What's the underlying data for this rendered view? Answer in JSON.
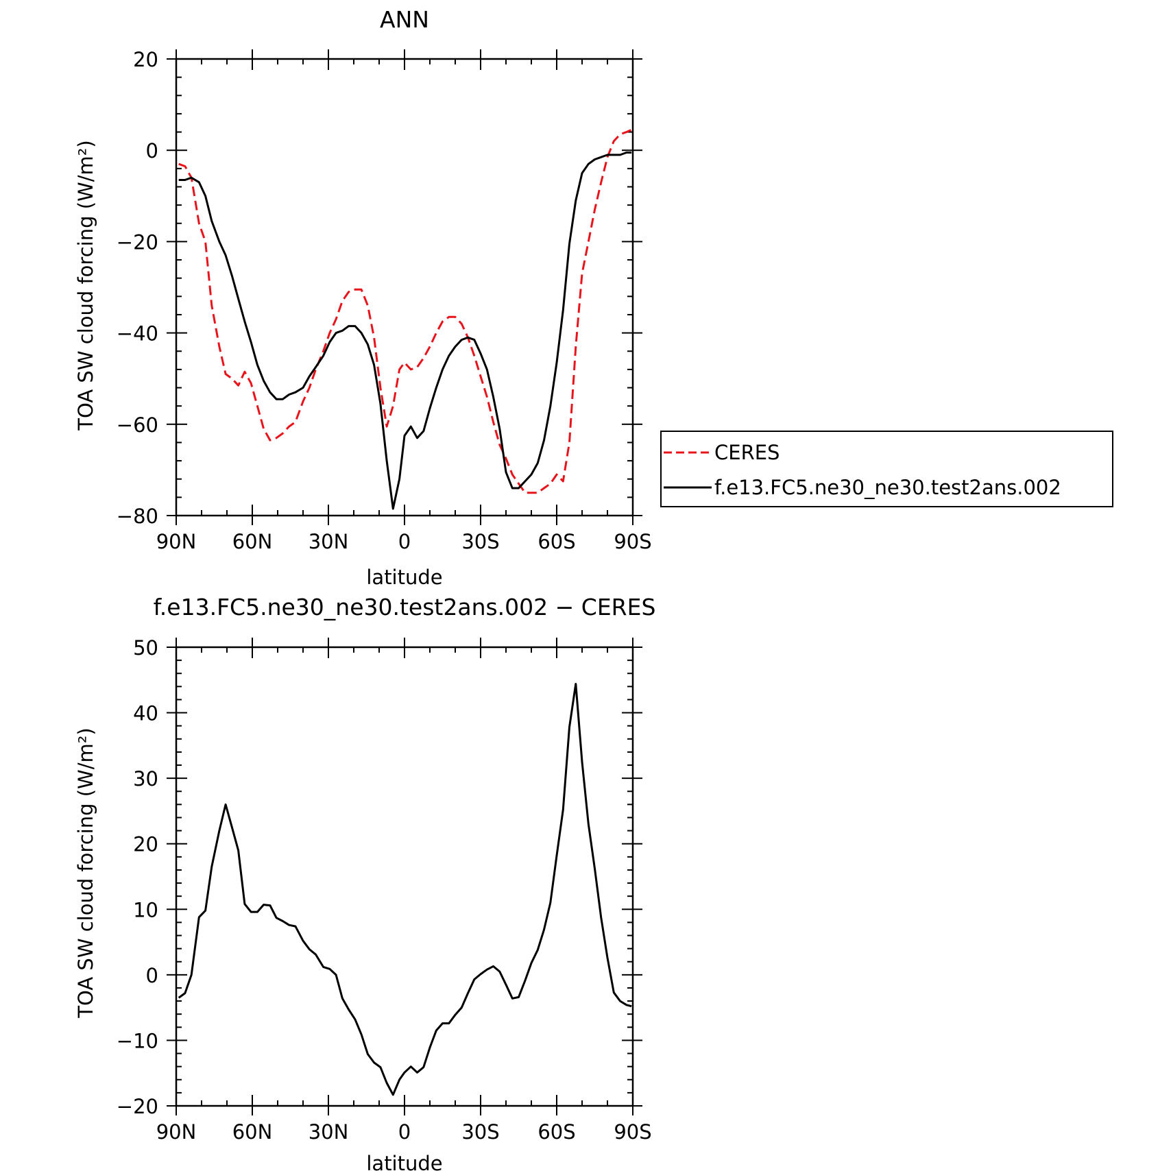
{
  "chart_data": [
    {
      "type": "line",
      "title": "ANN",
      "xlabel": "latitude",
      "ylabel": "TOA SW cloud forcing (W/m²)",
      "x_tick_labels": [
        "90N",
        "60N",
        "30N",
        "0",
        "30S",
        "60S",
        "90S"
      ],
      "x_tick_values": [
        90,
        60,
        30,
        0,
        -30,
        -60,
        -90
      ],
      "xlim": [
        90,
        -90
      ],
      "y_tick_labels": [
        "20",
        "0",
        "−20",
        "−40",
        "−60",
        "−80"
      ],
      "y_tick_values": [
        20,
        0,
        -20,
        -40,
        -60,
        -80
      ],
      "ylim": [
        -80,
        20
      ],
      "grid": false,
      "legend_placement": "right",
      "series": [
        {
          "name": "CERES",
          "color": "#e8141b",
          "dash": "dashed",
          "x": [
            89,
            86.5,
            84,
            81,
            78.5,
            76,
            73,
            70.5,
            68,
            65.5,
            63,
            60.5,
            58,
            55.5,
            53,
            50.5,
            48,
            45.5,
            43,
            40,
            37.5,
            35,
            32,
            29.5,
            27,
            24.5,
            22,
            19.5,
            17,
            14.5,
            12,
            9.5,
            7,
            4.5,
            2,
            0,
            -2.5,
            -5,
            -7.5,
            -10,
            -12.5,
            -15,
            -17.5,
            -20,
            -22.5,
            -25,
            -27.5,
            -30,
            -32.5,
            -35,
            -37.5,
            -40,
            -42.5,
            -45,
            -47.5,
            -50,
            -52.5,
            -55,
            -57.5,
            -60,
            -62.5,
            -65,
            -67.5,
            -70,
            -72.5,
            -75,
            -77.5,
            -80,
            -82.5,
            -85,
            -87.5,
            -89.5
          ],
          "y": [
            -3,
            -3.5,
            -6,
            -16,
            -20,
            -34,
            -43,
            -49,
            -50,
            -51.5,
            -48.5,
            -51,
            -56,
            -61,
            -63.5,
            -63,
            -62,
            -60.5,
            -59.5,
            -55,
            -52,
            -48,
            -44,
            -40,
            -37,
            -33,
            -31,
            -30.5,
            -30.5,
            -34,
            -41,
            -52,
            -60.5,
            -56,
            -48,
            -46.5,
            -48,
            -47.5,
            -45.5,
            -43,
            -40,
            -37.5,
            -36.5,
            -36.5,
            -38,
            -41,
            -45,
            -49.5,
            -54,
            -59.5,
            -64.5,
            -67.5,
            -71,
            -73,
            -75,
            -75,
            -75,
            -74,
            -73,
            -71,
            -72.5,
            -64,
            -43,
            -27,
            -20,
            -13,
            -7,
            -1.5,
            2,
            3.5,
            4,
            4.5
          ]
        },
        {
          "name": "f.e13.FC5.ne30_ne30.test2ans.002",
          "color": "#000000",
          "dash": "solid",
          "x": [
            89,
            86.5,
            84,
            81,
            78.5,
            76,
            73,
            70.5,
            68,
            65.5,
            63,
            60.5,
            58,
            55.5,
            53,
            50.5,
            48,
            45.5,
            43,
            40,
            37.5,
            35,
            32,
            29.5,
            27,
            24.5,
            22,
            19.5,
            17,
            14.5,
            12,
            9.5,
            7,
            4.5,
            2,
            0,
            -2.5,
            -5,
            -7.5,
            -10,
            -12.5,
            -15,
            -17.5,
            -20,
            -22.5,
            -25,
            -27.5,
            -30,
            -32.5,
            -35,
            -37.5,
            -40,
            -42.5,
            -45,
            -47.5,
            -50,
            -52.5,
            -55,
            -57.5,
            -60,
            -62.5,
            -65,
            -67.5,
            -70,
            -72.5,
            -75,
            -77.5,
            -80,
            -82.5,
            -85,
            -87.5,
            -89.5
          ],
          "y": [
            -6.5,
            -6.5,
            -6,
            -7,
            -10,
            -15.5,
            -20,
            -23,
            -27.5,
            -32.5,
            -37.5,
            -42,
            -47,
            -50.5,
            -53,
            -54.5,
            -54.5,
            -53.5,
            -53,
            -52,
            -49.5,
            -47.5,
            -45,
            -42,
            -40,
            -39.5,
            -38.5,
            -38.5,
            -40,
            -42.5,
            -47,
            -55.5,
            -68,
            -78.5,
            -72,
            -62.5,
            -60.5,
            -63,
            -61.5,
            -56.5,
            -52,
            -48,
            -45,
            -43,
            -41.5,
            -41,
            -41.5,
            -44.5,
            -48,
            -54,
            -61,
            -70.5,
            -74,
            -74,
            -72.5,
            -71,
            -68.5,
            -63.5,
            -56,
            -46.5,
            -35,
            -20.5,
            -11,
            -5,
            -3,
            -2,
            -1.5,
            -1,
            -1,
            -1,
            -0.5,
            -0.5
          ]
        }
      ]
    },
    {
      "type": "line",
      "title": "f.e13.FC5.ne30_ne30.test2ans.002 − CERES",
      "xlabel": "latitude",
      "ylabel": "TOA SW cloud forcing (W/m²)",
      "x_tick_labels": [
        "90N",
        "60N",
        "30N",
        "0",
        "30S",
        "60S",
        "90S"
      ],
      "x_tick_values": [
        90,
        60,
        30,
        0,
        -30,
        -60,
        -90
      ],
      "xlim": [
        90,
        -90
      ],
      "y_tick_labels": [
        "50",
        "40",
        "30",
        "20",
        "10",
        "0",
        "−10",
        "−20"
      ],
      "y_tick_values": [
        50,
        40,
        30,
        20,
        10,
        0,
        -10,
        -20
      ],
      "ylim": [
        -20,
        50
      ],
      "grid": false,
      "series": [
        {
          "color": "#000000",
          "dash": "solid",
          "x": [
            89,
            86.5,
            84,
            81,
            78.5,
            76,
            73,
            70.5,
            68,
            65.5,
            63,
            60.5,
            58,
            55.5,
            53,
            50.5,
            48,
            45.5,
            43,
            40,
            37.5,
            35,
            32,
            29.5,
            27,
            24.5,
            22,
            19.5,
            17,
            14.5,
            12,
            9.5,
            7,
            4.5,
            2,
            0,
            -2.5,
            -5,
            -7.5,
            -10,
            -12.5,
            -15,
            -17.5,
            -20,
            -22.5,
            -25,
            -27.5,
            -30,
            -32.5,
            -35,
            -37.5,
            -40,
            -42.5,
            -45,
            -47.5,
            -50,
            -52.5,
            -55,
            -57.5,
            -60,
            -62.5,
            -65,
            -67.5,
            -70,
            -72.5,
            -75,
            -77.5,
            -80,
            -82.5,
            -85,
            -87.5,
            -89.5
          ],
          "y": [
            -3.5,
            -2.8,
            0,
            8.8,
            9.8,
            16.5,
            22,
            26,
            22.5,
            19,
            10.8,
            9.6,
            9.6,
            10.7,
            10.6,
            8.7,
            8.2,
            7.6,
            7.4,
            5.2,
            3.9,
            3.1,
            1.2,
            0.9,
            0,
            -3.6,
            -5.3,
            -6.8,
            -9.1,
            -12.1,
            -13.4,
            -14.1,
            -16.5,
            -18.3,
            -16,
            -14.9,
            -14,
            -14.9,
            -14.1,
            -11.1,
            -8.5,
            -7.4,
            -7.4,
            -6.1,
            -5,
            -2.8,
            -0.7,
            0.1,
            0.8,
            1.3,
            0.5,
            -1.5,
            -3.6,
            -3.4,
            -0.9,
            1.8,
            3.8,
            6.9,
            11,
            18.2,
            25.2,
            37.8,
            44.4,
            32.5,
            23,
            16.2,
            8.7,
            2.6,
            -2.7,
            -4,
            -4.6,
            -4.8
          ]
        }
      ]
    }
  ]
}
